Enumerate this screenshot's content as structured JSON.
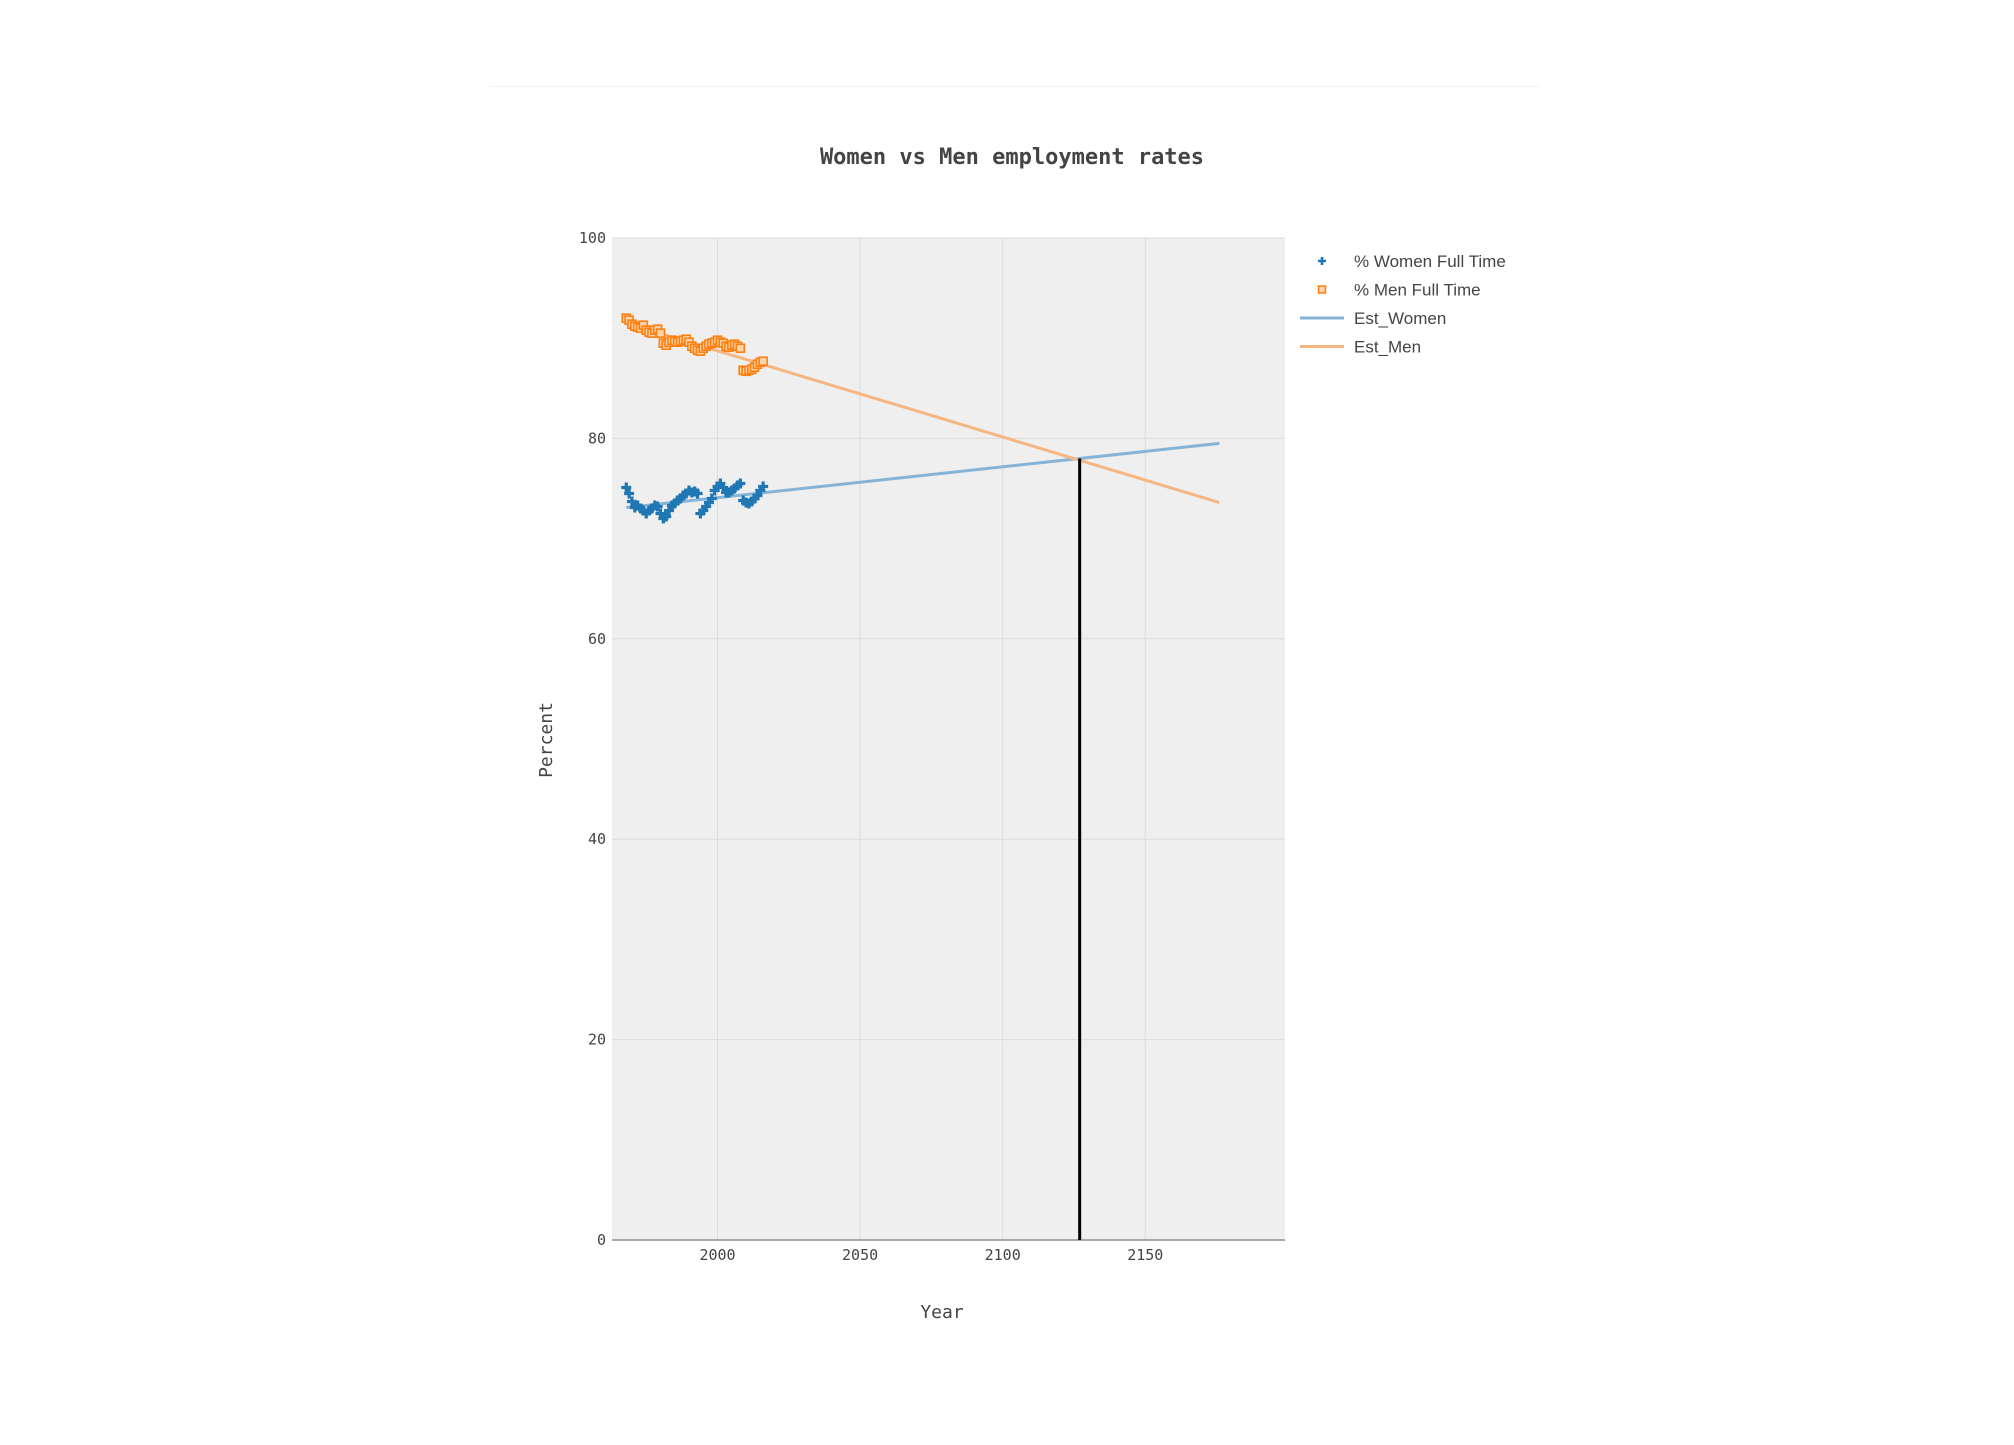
{
  "chart_data": {
    "type": "scatter",
    "title": "Women vs Men employment rates",
    "xlabel": "Year",
    "ylabel": "Percent",
    "xlim": [
      1963,
      2199
    ],
    "ylim": [
      0,
      100
    ],
    "x_ticks": [
      2000,
      2050,
      2100,
      2150
    ],
    "y_ticks": [
      0,
      20,
      40,
      60,
      80,
      100
    ],
    "grid": true,
    "legend_position": "top-right-outside",
    "intersection_year": 2127,
    "series": [
      {
        "name": "% Women Full Time",
        "mode": "markers",
        "marker": "cross",
        "color": "#1f77b4",
        "x": [
          1968,
          1969,
          1970,
          1971,
          1972,
          1973,
          1974,
          1975,
          1976,
          1977,
          1978,
          1979,
          1980,
          1981,
          1982,
          1983,
          1984,
          1985,
          1986,
          1987,
          1988,
          1989,
          1990,
          1991,
          1992,
          1993,
          1994,
          1995,
          1996,
          1997,
          1998,
          1999,
          2000,
          2001,
          2002,
          2003,
          2004,
          2005,
          2006,
          2007,
          2008,
          2009,
          2010,
          2011,
          2012,
          2013,
          2014,
          2015,
          2016
        ],
        "y": [
          75.1,
          74.5,
          73.7,
          73.1,
          73.3,
          73.0,
          72.8,
          72.5,
          72.8,
          73.0,
          73.3,
          73.2,
          72.5,
          72.0,
          72.2,
          72.8,
          73.3,
          73.5,
          73.8,
          74.0,
          74.3,
          74.5,
          74.8,
          74.6,
          74.7,
          74.5,
          72.5,
          72.8,
          73.2,
          73.6,
          74.0,
          74.8,
          75.2,
          75.5,
          75.1,
          74.6,
          74.6,
          74.8,
          75.0,
          75.3,
          75.5,
          73.8,
          73.6,
          73.5,
          73.7,
          74.0,
          74.3,
          74.8,
          75.2
        ]
      },
      {
        "name": "% Men Full Time",
        "mode": "markers",
        "marker": "square-open",
        "color": "#ff7f0e",
        "x": [
          1968,
          1969,
          1970,
          1971,
          1972,
          1973,
          1974,
          1975,
          1976,
          1977,
          1978,
          1979,
          1980,
          1981,
          1982,
          1983,
          1984,
          1985,
          1986,
          1987,
          1988,
          1989,
          1990,
          1991,
          1992,
          1993,
          1994,
          1995,
          1996,
          1997,
          1998,
          1999,
          2000,
          2001,
          2002,
          2003,
          2004,
          2005,
          2006,
          2007,
          2008,
          2009,
          2010,
          2011,
          2012,
          2013,
          2014,
          2015,
          2016
        ],
        "y": [
          92.0,
          91.8,
          91.4,
          91.2,
          91.1,
          91.0,
          91.3,
          90.8,
          90.6,
          90.5,
          90.8,
          90.9,
          90.5,
          89.5,
          89.3,
          89.6,
          89.8,
          89.7,
          89.6,
          89.7,
          89.8,
          89.9,
          89.6,
          89.2,
          89.0,
          88.8,
          88.7,
          89.0,
          89.2,
          89.4,
          89.5,
          89.6,
          89.8,
          89.6,
          89.5,
          89.2,
          89.1,
          89.3,
          89.4,
          89.2,
          89.0,
          86.8,
          86.7,
          86.8,
          86.9,
          87.1,
          87.4,
          87.6,
          87.7
        ]
      },
      {
        "name": "Est_Women",
        "mode": "lines",
        "color": "#86b3d6",
        "x": [
          1968,
          2176
        ],
        "y": [
          73.1,
          79.5
        ]
      },
      {
        "name": "Est_Men",
        "mode": "lines",
        "color": "#f5b682",
        "x": [
          1968,
          2176
        ],
        "y": [
          91.5,
          73.6
        ]
      }
    ]
  }
}
